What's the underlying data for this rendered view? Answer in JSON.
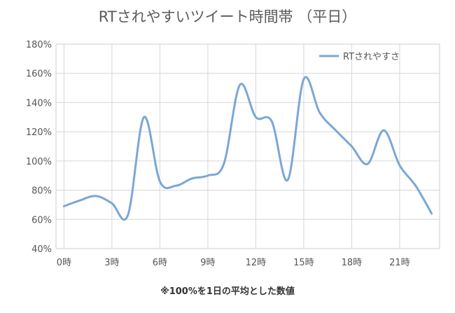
{
  "chart_data": {
    "type": "line",
    "title": "RTされやすいツイート時間帯 （平日）",
    "note": "※100%を1日の平均とした数値",
    "x": [
      0,
      1,
      2,
      3,
      4,
      5,
      6,
      7,
      8,
      9,
      10,
      11,
      12,
      13,
      14,
      15,
      16,
      17,
      18,
      19,
      20,
      21,
      22,
      23
    ],
    "x_tick_labels": [
      "0時",
      "3時",
      "6時",
      "9時",
      "12時",
      "15時",
      "18時",
      "21時"
    ],
    "x_tick_values": [
      0,
      3,
      6,
      9,
      12,
      15,
      18,
      21
    ],
    "ylim": [
      40,
      180
    ],
    "y_ticks": [
      40,
      60,
      80,
      100,
      120,
      140,
      160,
      180
    ],
    "y_tick_labels": [
      "40%",
      "60%",
      "80%",
      "100%",
      "120%",
      "140%",
      "160%",
      "180%"
    ],
    "grid": true,
    "legend_position": "top-right",
    "series": [
      {
        "name": "RTされやすさ",
        "color": "#7ba7d4",
        "values": [
          69,
          73,
          76,
          71,
          63,
          130,
          86,
          83,
          88,
          90,
          98,
          152,
          130,
          127,
          87,
          156,
          133,
          121,
          110,
          98,
          121,
          97,
          83,
          64
        ]
      }
    ]
  }
}
